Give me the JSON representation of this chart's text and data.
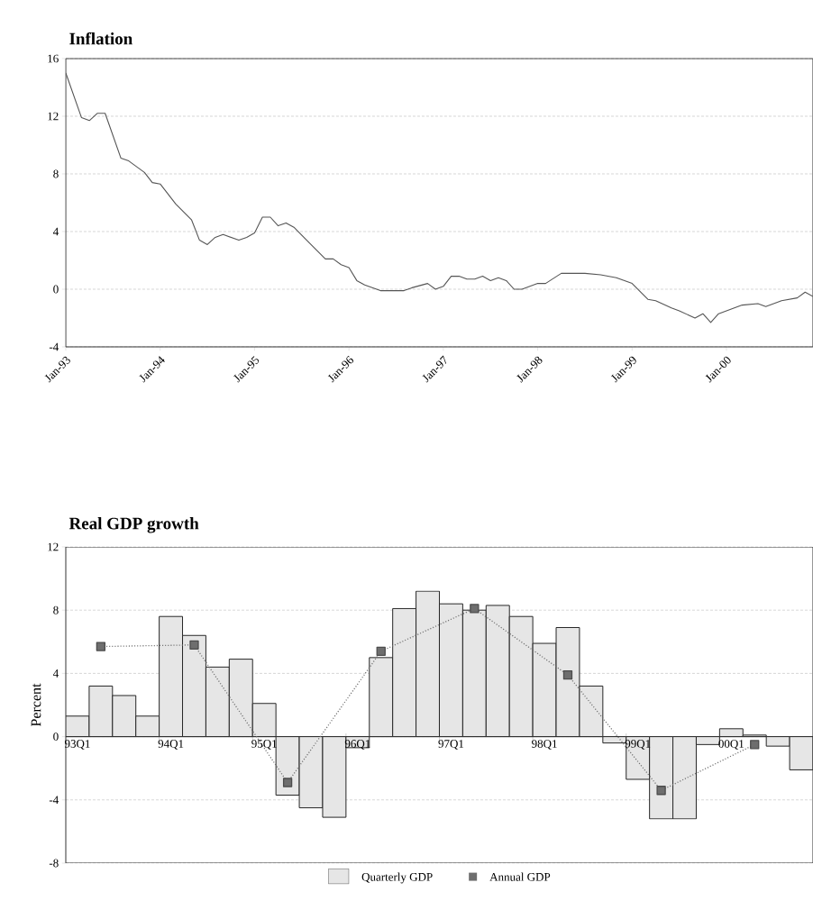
{
  "chart_data": [
    {
      "type": "line",
      "title": "Inflation",
      "x": [
        "1993-01",
        "1993-03",
        "1993-04",
        "1993-05",
        "1993-06",
        "1993-08",
        "1993-09",
        "1993-11",
        "1993-12",
        "1994-01",
        "1994-03",
        "1994-05",
        "1994-06",
        "1994-07",
        "1994-08",
        "1994-09",
        "1994-11",
        "1994-12",
        "1995-01",
        "1995-02",
        "1995-03",
        "1995-04",
        "1995-05",
        "1995-06",
        "1995-08",
        "1995-10",
        "1995-11",
        "1995-12",
        "1996-01",
        "1996-02",
        "1996-03",
        "1996-05",
        "1996-08",
        "1996-09",
        "1996-11",
        "1996-12",
        "1997-01",
        "1997-02",
        "1997-03",
        "1997-04",
        "1997-05",
        "1997-06",
        "1997-07",
        "1997-08",
        "1997-09",
        "1997-10",
        "1997-11",
        "1998-01",
        "1998-02",
        "1998-04",
        "1998-07",
        "1998-09",
        "1998-11",
        "1999-01",
        "1999-03",
        "1999-04",
        "1999-06",
        "1999-07",
        "1999-09",
        "1999-10",
        "1999-11",
        "1999-12",
        "2000-02",
        "2000-03",
        "2000-05",
        "2000-06",
        "2000-08",
        "2000-10",
        "2000-11",
        "2000-12"
      ],
      "values": [
        15.0,
        11.9,
        11.7,
        12.2,
        12.2,
        9.1,
        8.9,
        8.1,
        7.4,
        7.3,
        5.9,
        4.8,
        3.4,
        3.1,
        3.6,
        3.8,
        3.4,
        3.6,
        3.9,
        5.0,
        5.0,
        4.4,
        4.6,
        4.3,
        3.2,
        2.1,
        2.1,
        1.7,
        1.5,
        0.6,
        0.3,
        -0.1,
        -0.1,
        0.1,
        0.4,
        0.0,
        0.2,
        0.9,
        0.9,
        0.7,
        0.7,
        0.9,
        0.6,
        0.8,
        0.6,
        0.0,
        0.0,
        0.4,
        0.4,
        1.1,
        1.1,
        1.0,
        0.8,
        0.4,
        -0.7,
        -0.8,
        -1.3,
        -1.5,
        -2.0,
        -1.7,
        -2.3,
        -1.7,
        -1.3,
        -1.1,
        -1.0,
        -1.2,
        -0.8,
        -0.6,
        -0.2,
        -0.5
      ],
      "color": "#555555",
      "xlim": [
        "1993-01",
        "2000-12"
      ],
      "xticks": [
        {
          "value": "1993-01",
          "label": "Jan-93"
        },
        {
          "value": "1994-01",
          "label": "Jan-94"
        },
        {
          "value": "1995-01",
          "label": "Jan-95"
        },
        {
          "value": "1996-01",
          "label": "Jan-96"
        },
        {
          "value": "1997-01",
          "label": "Jan-97"
        },
        {
          "value": "1998-01",
          "label": "Jan-98"
        },
        {
          "value": "1999-01",
          "label": "Jan-99"
        },
        {
          "value": "2000-01",
          "label": "Jan-00"
        }
      ],
      "ylim": [
        -4,
        16
      ],
      "yticks": [
        -4,
        0,
        4,
        8,
        12,
        16
      ],
      "grid": "y"
    },
    {
      "type": "bar",
      "title": "Real GDP growth",
      "ylabel": "Percent",
      "categories": [
        "93Q1",
        null,
        null,
        null,
        "94Q1",
        null,
        null,
        null,
        "95Q1",
        null,
        null,
        null,
        "96Q1",
        null,
        null,
        null,
        "97Q1",
        null,
        null,
        null,
        "98Q1",
        null,
        null,
        null,
        "99Q1",
        null,
        null,
        null,
        "00Q1",
        null,
        null,
        null
      ],
      "series": [
        {
          "name": "Quarterly GDP",
          "color": "#e6e6e6",
          "values": [
            1.3,
            3.2,
            2.6,
            1.3,
            7.6,
            6.4,
            4.4,
            4.9,
            2.1,
            -3.7,
            -4.5,
            -5.1,
            -0.7,
            5.0,
            8.1,
            9.2,
            8.4,
            8.0,
            8.3,
            7.6,
            5.9,
            6.9,
            3.2,
            -0.4,
            -2.7,
            -5.2,
            -5.2,
            -0.5,
            0.5,
            0.1,
            -0.6,
            -2.1
          ]
        },
        {
          "name": "Annual GDP",
          "type": "line",
          "color": "#6e6e6e",
          "marker": "square",
          "line_style": "dotted",
          "values": [
            null,
            5.7,
            null,
            null,
            null,
            5.8,
            null,
            null,
            null,
            -2.9,
            null,
            null,
            null,
            5.4,
            null,
            null,
            null,
            8.1,
            null,
            null,
            null,
            3.9,
            null,
            null,
            null,
            -3.4,
            null,
            null,
            null,
            -0.5,
            null,
            null
          ]
        }
      ],
      "ylim": [
        -8,
        12
      ],
      "yticks": [
        -8,
        -4,
        0,
        4,
        8,
        12
      ],
      "grid": "y",
      "legend": "bottom"
    }
  ]
}
